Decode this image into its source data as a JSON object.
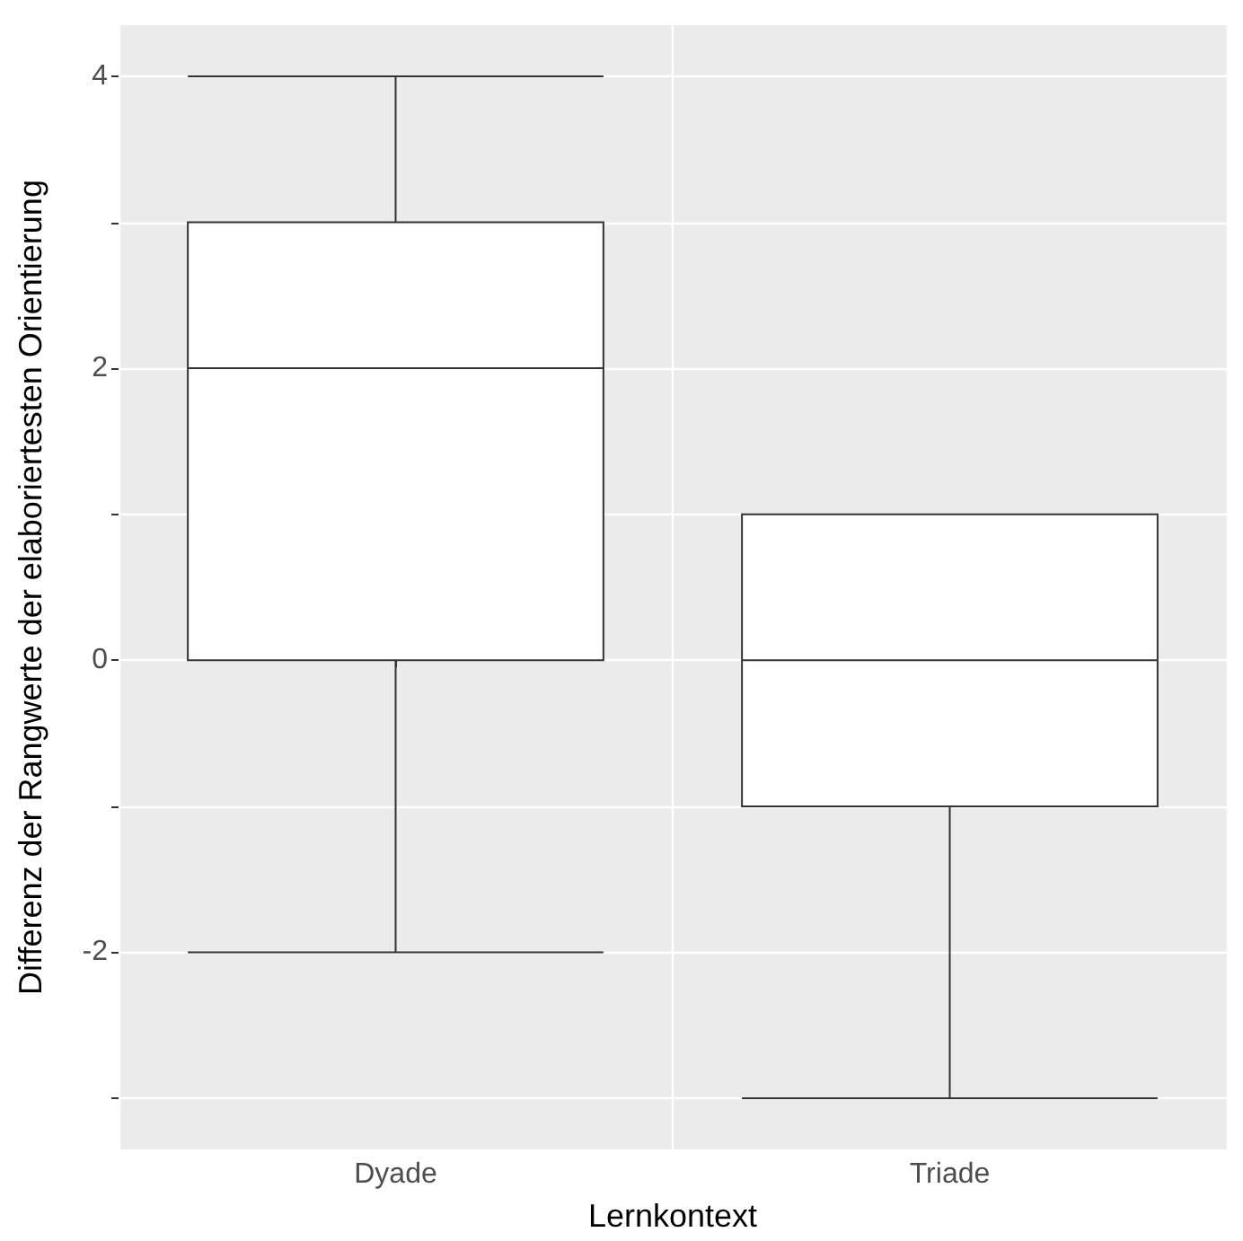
{
  "chart_data": {
    "type": "box",
    "xlabel": "Lernkontext",
    "ylabel": "Differenz der Rangwerte der elaboriertesten Orientierung",
    "categories": [
      "Dyade",
      "Triade"
    ],
    "boxes": [
      {
        "low": -2,
        "q1": 0,
        "median": 2,
        "q3": 3,
        "high": 4
      },
      {
        "low": -3,
        "q1": -1,
        "median": 0,
        "q3": 1,
        "high": 1
      }
    ],
    "color": "#ffffff",
    "ylim": [
      -3.35,
      4.35
    ],
    "yticks": [
      {
        "value": -3,
        "label": null
      },
      -2,
      {
        "value": -1,
        "label": null
      },
      0,
      {
        "value": 1,
        "label": null
      },
      2,
      {
        "value": 3,
        "label": null
      },
      4
    ],
    "grid": true
  }
}
